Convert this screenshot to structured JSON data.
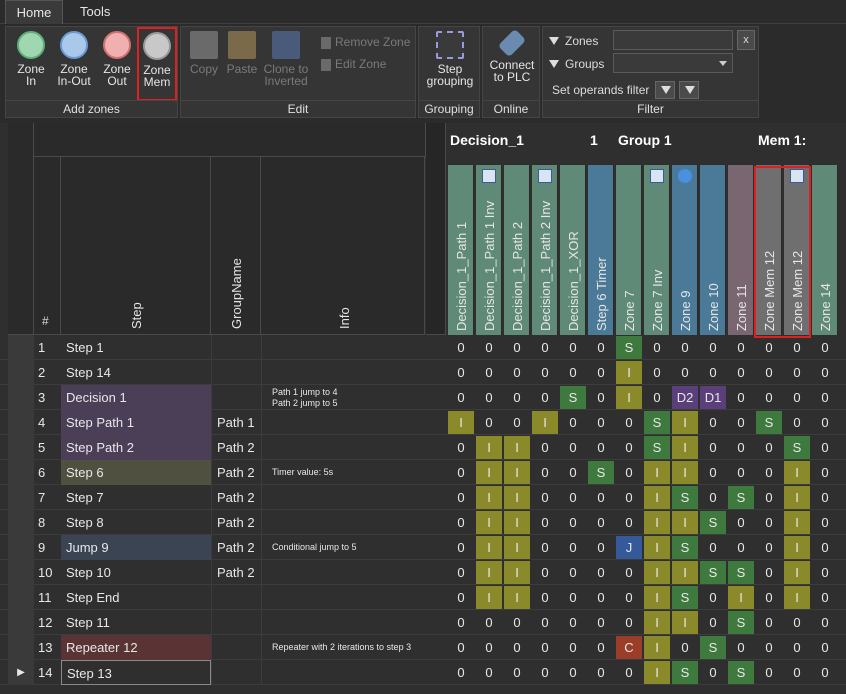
{
  "tabs": {
    "home": "Home",
    "tools": "Tools"
  },
  "ribbon": {
    "add_zones": {
      "label": "Add zones",
      "zone_in": "Zone In",
      "zone_in_out": "Zone In-Out",
      "zone_out": "Zone Out",
      "zone_mem": "Zone Mem"
    },
    "edit": {
      "label": "Edit",
      "copy": "Copy",
      "paste": "Paste",
      "clone": "Clone to Inverted",
      "remove_zone": "Remove Zone",
      "edit_zone": "Edit Zone"
    },
    "grouping": {
      "label": "Grouping",
      "step_grouping": "Step grouping"
    },
    "online": {
      "label": "Online",
      "connect": "Connect to PLC"
    },
    "filter": {
      "label": "Filter",
      "zones": "Zones",
      "groups": "Groups",
      "set_operands": "Set operands filter",
      "zones_value": "",
      "groups_value": "",
      "clear": "x"
    }
  },
  "columns": {
    "num": "#",
    "step": "Step",
    "groupname": "GroupName",
    "info": "Info"
  },
  "group_headers": [
    "Decision_1",
    "1",
    "Group 1",
    "Mem 1:"
  ],
  "zone_columns": [
    {
      "label": "Decision_1_Path 1",
      "color": "#5f8a78",
      "icon": ""
    },
    {
      "label": "Decision_1_Path 1 Inv",
      "color": "#5f8a78",
      "icon": "invert-icon"
    },
    {
      "label": "Decision_1_Path 2",
      "color": "#5f8a78",
      "icon": ""
    },
    {
      "label": "Decision_1_Path 2 Inv",
      "color": "#5f8a78",
      "icon": "invert-icon"
    },
    {
      "label": "Decision_1_XOR",
      "color": "#5f8a78",
      "icon": ""
    },
    {
      "label": "Step 6 Timer",
      "color": "#4a7a98",
      "icon": ""
    },
    {
      "label": "Zone 7",
      "color": "#5f8a78",
      "icon": ""
    },
    {
      "label": "Zone 7 Inv",
      "color": "#5f8a78",
      "icon": "invert-icon"
    },
    {
      "label": "Zone 9",
      "color": "#4a7a98",
      "icon": "up-icon"
    },
    {
      "label": "Zone 10",
      "color": "#4a7a98",
      "icon": ""
    },
    {
      "label": "Zone 11",
      "color": "#7a6670",
      "icon": ""
    },
    {
      "label": "Zone Mem 12",
      "color": "#6f6f6f",
      "icon": ""
    },
    {
      "label": "Zone Mem 12",
      "color": "#6f6f6f",
      "icon": "invert-icon"
    },
    {
      "label": "Zone 14",
      "color": "#5f8a78",
      "icon": ""
    }
  ],
  "rows": [
    {
      "num": "1",
      "step": "Step 1",
      "group": "",
      "info": "",
      "stepColor": "",
      "cells": [
        "0",
        "0",
        "0",
        "0",
        "0",
        "0",
        "S",
        "0",
        "0",
        "0",
        "0",
        "0",
        "0",
        "0"
      ]
    },
    {
      "num": "2",
      "step": "Step 14",
      "group": "",
      "info": "",
      "stepColor": "",
      "cells": [
        "0",
        "0",
        "0",
        "0",
        "0",
        "0",
        "I",
        "0",
        "0",
        "0",
        "0",
        "0",
        "0",
        "0"
      ]
    },
    {
      "num": "3",
      "step": "Decision 1",
      "group": "",
      "info": "Path 1 jump to 4\nPath 2 jump to 5",
      "stepColor": "#4a3f57",
      "cells": [
        "0",
        "0",
        "0",
        "0",
        "S",
        "0",
        "I",
        "0",
        "D2",
        "D1",
        "0",
        "0",
        "0",
        "0"
      ]
    },
    {
      "num": "4",
      "step": "Step Path 1",
      "group": "Path 1",
      "info": "",
      "stepColor": "#4a3f57",
      "cells": [
        "I",
        "0",
        "0",
        "I",
        "0",
        "0",
        "0",
        "S",
        "I",
        "0",
        "0",
        "S",
        "0",
        "0"
      ]
    },
    {
      "num": "5",
      "step": "Step Path 2",
      "group": "Path 2",
      "info": "",
      "stepColor": "#4a3f57",
      "cells": [
        "0",
        "I",
        "I",
        "0",
        "0",
        "0",
        "0",
        "S",
        "I",
        "0",
        "0",
        "0",
        "S",
        "0"
      ]
    },
    {
      "num": "6",
      "step": "Step 6",
      "group": "Path 2",
      "info": "Timer value: 5s",
      "stepColor": "#505040",
      "cells": [
        "0",
        "I",
        "I",
        "0",
        "0",
        "S",
        "0",
        "I",
        "I",
        "0",
        "0",
        "0",
        "I",
        "0"
      ]
    },
    {
      "num": "7",
      "step": "Step 7",
      "group": "Path 2",
      "info": "",
      "stepColor": "",
      "cells": [
        "0",
        "I",
        "I",
        "0",
        "0",
        "0",
        "0",
        "I",
        "S",
        "0",
        "S",
        "0",
        "I",
        "0"
      ]
    },
    {
      "num": "8",
      "step": "Step 8",
      "group": "Path 2",
      "info": "",
      "stepColor": "",
      "cells": [
        "0",
        "I",
        "I",
        "0",
        "0",
        "0",
        "0",
        "I",
        "I",
        "S",
        "0",
        "0",
        "I",
        "0"
      ]
    },
    {
      "num": "9",
      "step": "Jump 9",
      "group": "Path 2",
      "info": "Conditional jump to 5",
      "stepColor": "#3a4452",
      "cells": [
        "0",
        "I",
        "I",
        "0",
        "0",
        "0",
        "J",
        "I",
        "S",
        "0",
        "0",
        "0",
        "I",
        "0"
      ]
    },
    {
      "num": "10",
      "step": "Step 10",
      "group": "Path 2",
      "info": "",
      "stepColor": "",
      "cells": [
        "0",
        "I",
        "I",
        "0",
        "0",
        "0",
        "0",
        "I",
        "I",
        "S",
        "S",
        "0",
        "I",
        "0"
      ]
    },
    {
      "num": "11",
      "step": "Step End",
      "group": "",
      "info": "",
      "stepColor": "",
      "cells": [
        "0",
        "I",
        "I",
        "0",
        "0",
        "0",
        "0",
        "I",
        "S",
        "0",
        "I",
        "0",
        "I",
        "0"
      ]
    },
    {
      "num": "12",
      "step": "Step 11",
      "group": "",
      "info": "",
      "stepColor": "",
      "cells": [
        "0",
        "0",
        "0",
        "0",
        "0",
        "0",
        "0",
        "I",
        "I",
        "0",
        "S",
        "0",
        "0",
        "0"
      ]
    },
    {
      "num": "13",
      "step": "Repeater 12",
      "group": "",
      "info": "Repeater with 2 iterations to step 3",
      "stepColor": "#5a3434",
      "cells": [
        "0",
        "0",
        "0",
        "0",
        "0",
        "0",
        "C",
        "I",
        "0",
        "S",
        "0",
        "0",
        "0",
        "0"
      ]
    },
    {
      "num": "14",
      "step": "Step 13",
      "group": "",
      "info": "",
      "stepColor": "",
      "cells": [
        "0",
        "0",
        "0",
        "0",
        "0",
        "0",
        "0",
        "I",
        "S",
        "0",
        "S",
        "0",
        "0",
        "0"
      ]
    }
  ],
  "colors": {
    "I": "#8a8a2a",
    "S": "#3e7a3e",
    "D": "#5a3f7a",
    "J": "#355a9a",
    "C": "#9a3e2a"
  }
}
